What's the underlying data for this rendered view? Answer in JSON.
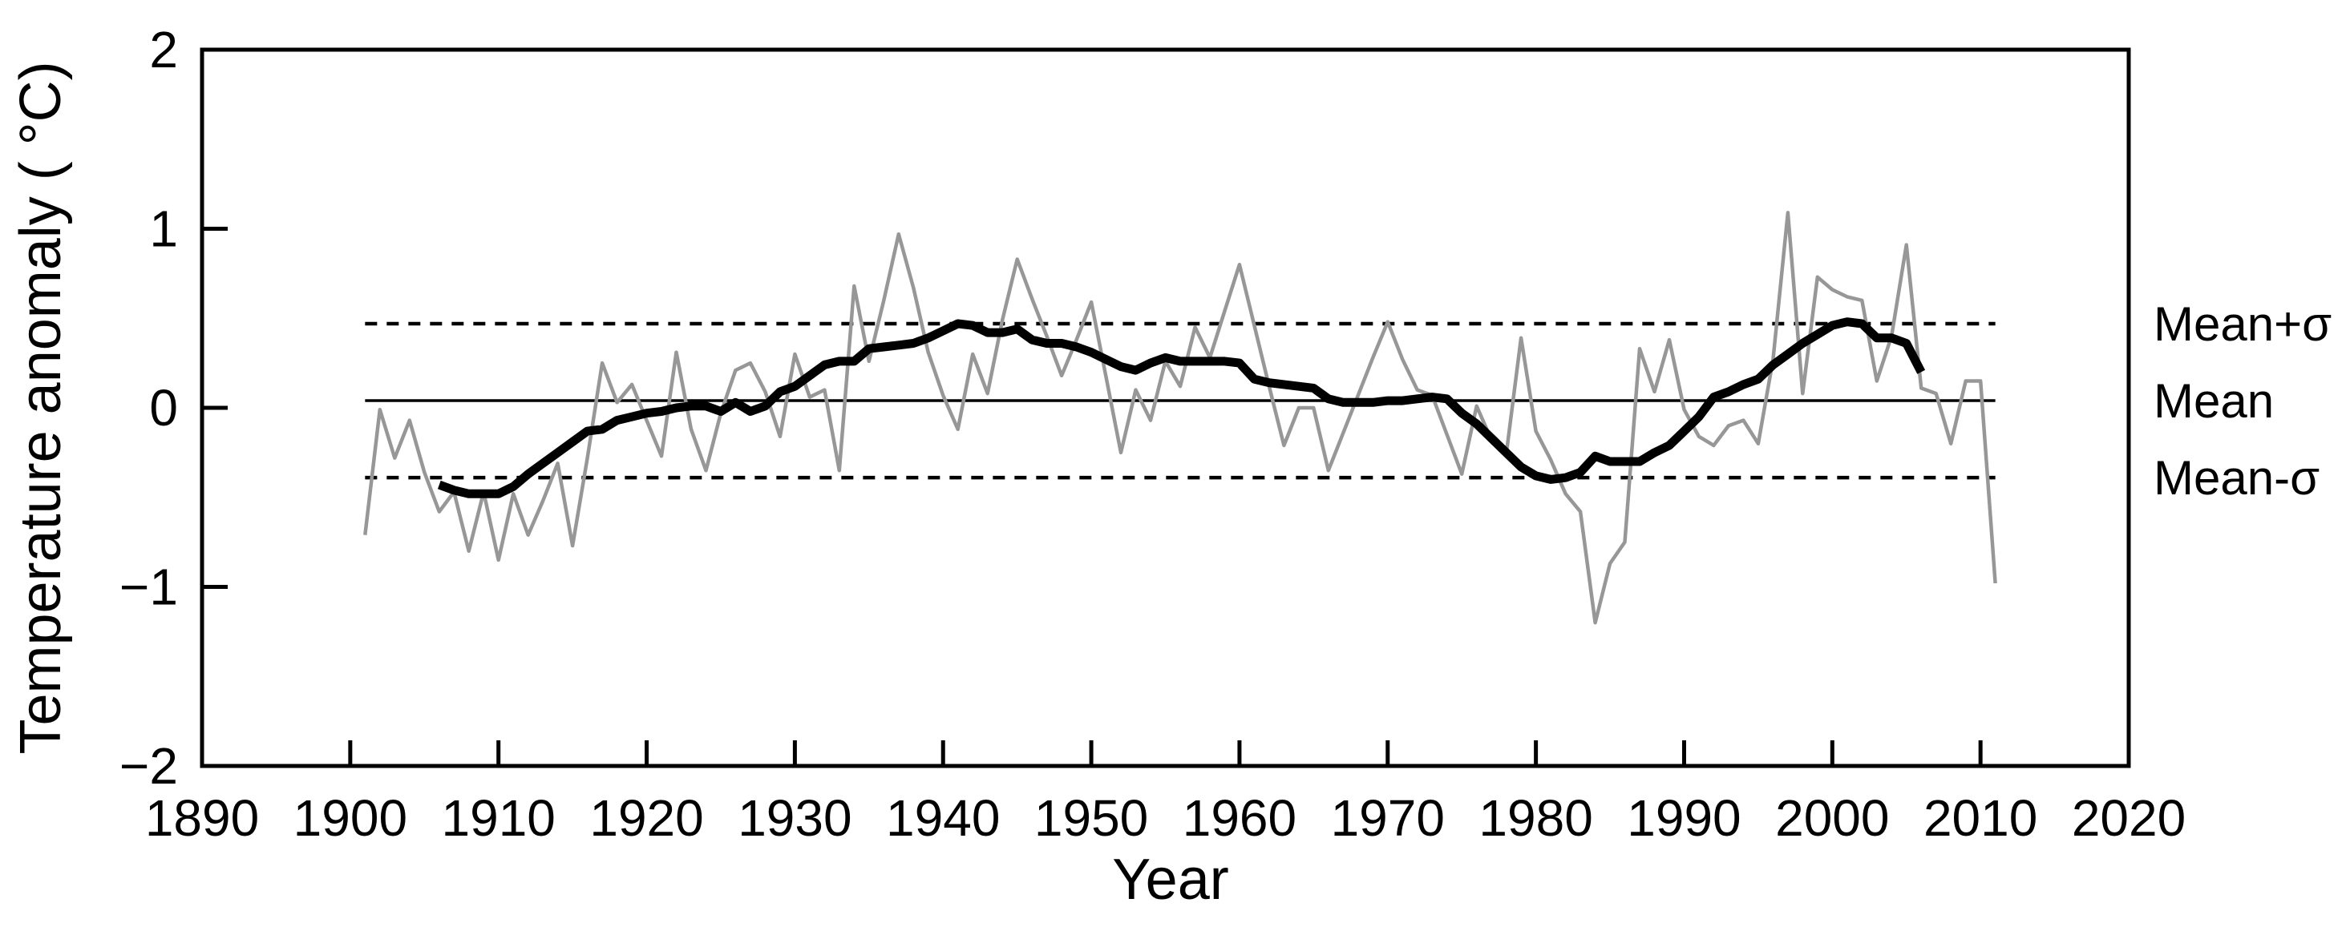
{
  "figure": {
    "background": "#ffffff",
    "frame_color": "#000000"
  },
  "chart_data": {
    "type": "line",
    "title": "",
    "xlabel": "Year",
    "ylabel": "Temperature anomaly ( °C)",
    "xlim": [
      1890,
      2020
    ],
    "ylim": [
      -2,
      2
    ],
    "grid": false,
    "legend": false,
    "x_ticks": [
      {
        "label": "1890",
        "year": 1890
      },
      {
        "label": "1900",
        "year": 1900
      },
      {
        "label": "1910",
        "year": 1910
      },
      {
        "label": "1920",
        "year": 1920
      },
      {
        "label": "1930",
        "year": 1930
      },
      {
        "label": "1940",
        "year": 1940
      },
      {
        "label": "1950",
        "year": 1950
      },
      {
        "label": "1960",
        "year": 1960
      },
      {
        "label": "1970",
        "year": 1970
      },
      {
        "label": "1980",
        "year": 1980
      },
      {
        "label": "1990",
        "year": 1990
      },
      {
        "label": "2000",
        "year": 2000
      },
      {
        "label": "2010",
        "year": 2010
      },
      {
        "label": "2020",
        "year": 2020
      }
    ],
    "y_ticks": [
      {
        "label": "2",
        "value": 2
      },
      {
        "label": "1",
        "value": 1
      },
      {
        "label": "0",
        "value": 0
      },
      {
        "label": "−1",
        "value": -1
      },
      {
        "label": "−2",
        "value": -2
      }
    ],
    "reference_lines": [
      {
        "name": "mean-plus-sigma",
        "label": "Mean+σ",
        "value": 0.47,
        "style": "dashed",
        "span_years": [
          1901,
          2011
        ]
      },
      {
        "name": "mean",
        "label": "Mean",
        "value": 0.04,
        "style": "solid",
        "span_years": [
          1901,
          2011
        ]
      },
      {
        "name": "mean-minus-sigma",
        "label": "Mean-σ",
        "value": -0.39,
        "style": "dashed",
        "span_years": [
          1901,
          2011
        ]
      }
    ],
    "series": [
      {
        "name": "annual-anomaly",
        "color": "#979797",
        "stroke_width": 4.5,
        "start_year": 1901,
        "values": [
          -0.71,
          -0.01,
          -0.28,
          -0.07,
          -0.36,
          -0.58,
          -0.47,
          -0.8,
          -0.47,
          -0.85,
          -0.48,
          -0.71,
          -0.52,
          -0.31,
          -0.77,
          -0.28,
          0.25,
          0.03,
          0.13,
          -0.07,
          -0.27,
          0.31,
          -0.12,
          -0.35,
          -0.03,
          0.21,
          0.25,
          0.09,
          -0.16,
          0.3,
          0.06,
          0.1,
          -0.35,
          0.68,
          0.26,
          0.6,
          0.97,
          0.67,
          0.31,
          0.07,
          -0.12,
          0.3,
          0.08,
          0.49,
          0.83,
          0.61,
          0.4,
          0.18,
          0.38,
          0.59,
          0.17,
          -0.25,
          0.1,
          -0.07,
          0.26,
          0.12,
          0.45,
          0.28,
          0.54,
          0.8,
          0.46,
          0.12,
          -0.21,
          0.0,
          0.0,
          -0.35,
          -0.14,
          0.07,
          0.28,
          0.48,
          0.27,
          0.1,
          0.07,
          -0.15,
          -0.37,
          0.01,
          -0.18,
          -0.26,
          0.39,
          -0.13,
          -0.29,
          -0.48,
          -0.58,
          -1.2,
          -0.87,
          -0.75,
          0.33,
          0.09,
          0.38,
          -0.01,
          -0.16,
          -0.21,
          -0.1,
          -0.07,
          -0.2,
          0.27,
          1.09,
          0.08,
          0.73,
          0.66,
          0.62,
          0.6,
          0.15,
          0.4,
          0.91,
          0.11,
          0.08,
          -0.2,
          0.15,
          0.15,
          -0.98
        ]
      },
      {
        "name": "smoothed-anomaly",
        "color": "#000000",
        "stroke_width": 11,
        "start_year": 1906,
        "values": [
          -0.43,
          -0.46,
          -0.48,
          -0.48,
          -0.48,
          -0.44,
          -0.37,
          -0.31,
          -0.25,
          -0.19,
          -0.13,
          -0.12,
          -0.07,
          -0.05,
          -0.03,
          -0.02,
          0.0,
          0.01,
          0.01,
          -0.02,
          0.03,
          -0.02,
          0.01,
          0.09,
          0.12,
          0.18,
          0.24,
          0.26,
          0.26,
          0.33,
          0.34,
          0.35,
          0.36,
          0.39,
          0.43,
          0.47,
          0.46,
          0.42,
          0.42,
          0.44,
          0.38,
          0.36,
          0.36,
          0.34,
          0.31,
          0.27,
          0.23,
          0.21,
          0.25,
          0.28,
          0.26,
          0.26,
          0.26,
          0.26,
          0.25,
          0.16,
          0.14,
          0.13,
          0.12,
          0.11,
          0.05,
          0.03,
          0.03,
          0.03,
          0.04,
          0.04,
          0.05,
          0.06,
          0.05,
          -0.03,
          -0.09,
          -0.17,
          -0.25,
          -0.33,
          -0.38,
          -0.4,
          -0.39,
          -0.36,
          -0.27,
          -0.3,
          -0.3,
          -0.3,
          -0.25,
          -0.21,
          -0.13,
          -0.05,
          0.06,
          0.09,
          0.13,
          0.16,
          0.24,
          0.3,
          0.36,
          0.41,
          0.46,
          0.48,
          0.47,
          0.39,
          0.39,
          0.36,
          0.2
        ]
      }
    ]
  }
}
